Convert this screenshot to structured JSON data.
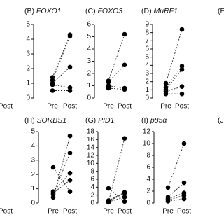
{
  "chart_data": [
    {
      "type": "line",
      "panel": "(B)",
      "title": "FOXO1",
      "categories": [
        "Pre",
        "Post"
      ],
      "ylim": [
        0,
        5
      ],
      "yticks": [
        0,
        1,
        2,
        3,
        4,
        5
      ],
      "series": [
        {
          "values": [
            1.4,
            4.3
          ]
        },
        {
          "values": [
            1.2,
            4.2
          ]
        },
        {
          "values": [
            1.0,
            2.1
          ]
        },
        {
          "values": [
            0.9,
            0.7
          ]
        },
        {
          "values": [
            0.5,
            0.5
          ]
        }
      ]
    },
    {
      "type": "line",
      "panel": "(C)",
      "title": "FOXO3",
      "categories": [
        "Pre",
        "Post"
      ],
      "ylim": [
        0,
        6
      ],
      "yticks": [
        0,
        1,
        2,
        3,
        4,
        5,
        6
      ],
      "series": [
        {
          "values": [
            1.4,
            5.2
          ]
        },
        {
          "values": [
            1.3,
            2.7
          ]
        },
        {
          "values": [
            1.0,
            0.8
          ]
        },
        {
          "values": [
            0.8,
            0.7
          ]
        }
      ]
    },
    {
      "type": "line",
      "panel": "(D)",
      "title": "MuRF1",
      "categories": [
        "Pre",
        "Post"
      ],
      "ylim": [
        0,
        9
      ],
      "yticks": [
        0,
        1,
        2,
        3,
        4,
        5,
        6,
        7,
        8,
        9
      ],
      "series": [
        {
          "values": [
            1.8,
            8.4
          ]
        },
        {
          "values": [
            1.3,
            3.9
          ]
        },
        {
          "values": [
            1.0,
            3.5
          ]
        },
        {
          "values": [
            0.8,
            1.4
          ]
        },
        {
          "values": [
            0.5,
            0.5
          ]
        }
      ]
    },
    {
      "type": "line",
      "panel": "(H)",
      "title": "SORBS1",
      "categories": [
        "Pre",
        "Post"
      ],
      "ylim": [
        0,
        5
      ],
      "yticks": [
        0,
        1,
        2,
        3,
        4,
        5
      ],
      "series": [
        {
          "values": [
            2.5,
            0.8
          ]
        },
        {
          "values": [
            0.8,
            2.1
          ]
        },
        {
          "values": [
            0.7,
            1.6
          ]
        },
        {
          "values": [
            0.6,
            3.5
          ]
        },
        {
          "values": [
            0.4,
            4.7
          ]
        }
      ]
    },
    {
      "type": "line",
      "panel": "(G)",
      "title": "PID1",
      "categories": [
        "Pre",
        "Post"
      ],
      "ylim": [
        0,
        18
      ],
      "yticks": [
        0,
        2,
        4,
        6,
        8,
        10,
        12,
        14,
        16,
        18
      ],
      "series": [
        {
          "values": [
            0.2,
            16.3
          ]
        },
        {
          "values": [
            3.7,
            0.4
          ]
        },
        {
          "values": [
            0.6,
            2.7
          ]
        },
        {
          "values": [
            0.3,
            1.5
          ]
        },
        {
          "values": [
            0.4,
            2.5
          ]
        }
      ]
    },
    {
      "type": "line",
      "panel": "(I)",
      "title": "p85α",
      "categories": [
        "Pre",
        "Post"
      ],
      "ylim": [
        0,
        12
      ],
      "yticks": [
        0,
        2,
        4,
        6,
        8,
        10,
        12
      ],
      "series": [
        {
          "values": [
            2.6,
            10
          ]
        },
        {
          "values": [
            1.0,
            3.4
          ]
        },
        {
          "values": [
            0.7,
            1.7
          ]
        },
        {
          "values": [
            0.5,
            1.3
          ]
        },
        {
          "values": [
            0.3,
            0.7
          ]
        }
      ]
    }
  ],
  "fragments": [
    "Post",
    "Post",
    "(E",
    "(J"
  ]
}
